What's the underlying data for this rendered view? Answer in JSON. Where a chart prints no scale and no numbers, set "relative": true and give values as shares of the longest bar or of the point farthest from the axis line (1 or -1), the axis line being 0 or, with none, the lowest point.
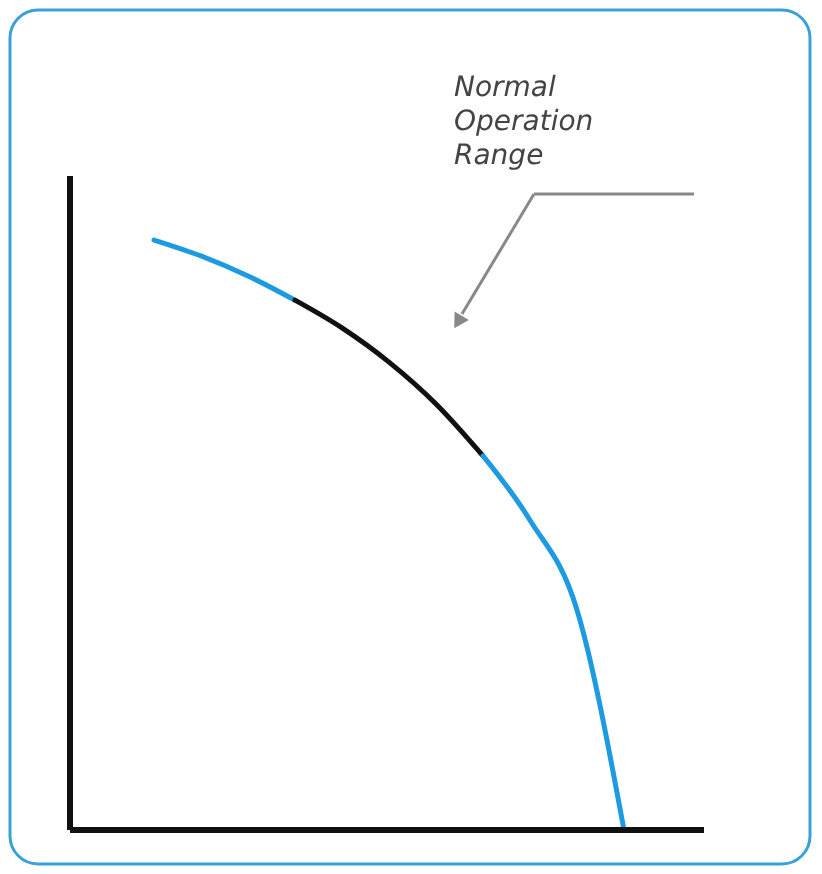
{
  "chart_data": {
    "type": "line",
    "relative": true,
    "categories": [
      null,
      null,
      null,
      null,
      null,
      null,
      null,
      null,
      null,
      null,
      null
    ],
    "series": [
      {
        "color": "#1e9be0",
        "values": [
          1,
          0.973,
          0.939,
          0.898,
          null,
          null,
          null,
          null,
          null,
          null,
          null
        ]
      },
      {
        "color": "#111111",
        "values": [
          null,
          null,
          null,
          0.898,
          0.851,
          0.793,
          0.722,
          0.634,
          null,
          null,
          null
        ]
      },
      {
        "color": "#1e9be0",
        "values": [
          null,
          null,
          null,
          null,
          null,
          null,
          null,
          0.634,
          0.525,
          0.373,
          0
        ]
      }
    ],
    "annotations": [
      "Normal Operation Range"
    ]
  }
}
